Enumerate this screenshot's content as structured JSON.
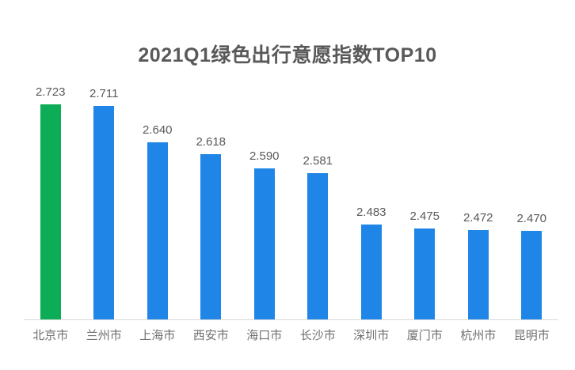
{
  "chart_data": {
    "type": "bar",
    "title": "2021Q1绿色出行意愿指数TOP10",
    "categories": [
      "北京市",
      "兰州市",
      "上海市",
      "西安市",
      "海口市",
      "长沙市",
      "深圳市",
      "厦门市",
      "杭州市",
      "昆明市"
    ],
    "values": [
      2.723,
      2.711,
      2.64,
      2.618,
      2.59,
      2.581,
      2.483,
      2.475,
      2.472,
      2.47
    ],
    "value_labels": [
      "2.723",
      "2.711",
      "2.640",
      "2.618",
      "2.590",
      "2.581",
      "2.483",
      "2.475",
      "2.472",
      "2.470"
    ],
    "ylim": [
      2.3,
      2.75
    ],
    "grid": false,
    "legend": false,
    "data_labels": true,
    "highlight_index": 0,
    "colors": {
      "highlight_bar": "#0DAC57",
      "default_bar": "#1F86E8",
      "title_text": "#595959",
      "value_label_text": "#595959",
      "category_label_text": "#6F6F6F",
      "axis_line": "#D9D9D9",
      "background": "#FFFFFF"
    }
  }
}
